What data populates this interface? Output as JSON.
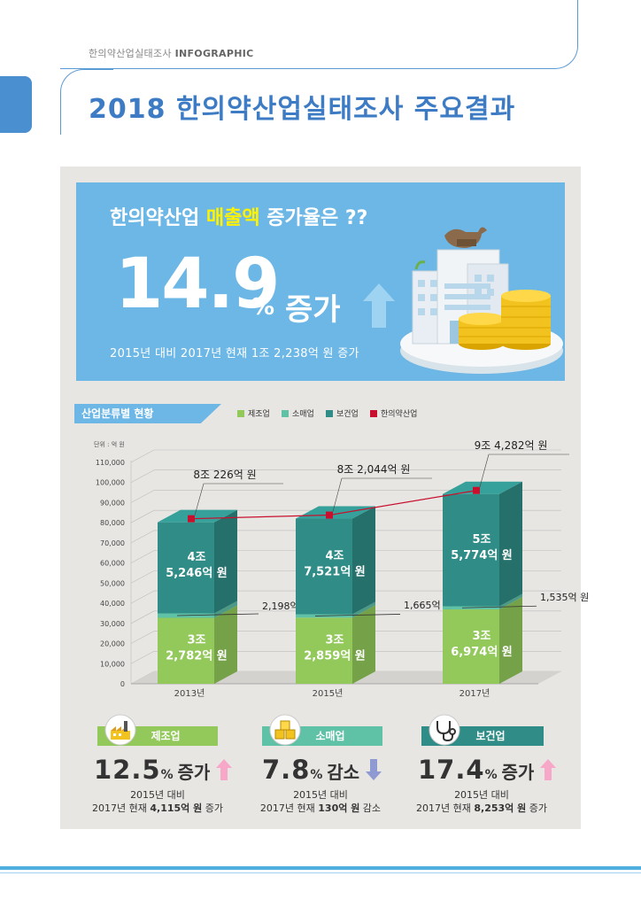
{
  "header": {
    "label_ko": "한의약산업실태조사",
    "label_en": "INFOGRAPHIC"
  },
  "title": "2018 한의약산업실태조사 주요결과",
  "hero": {
    "question_pre": "한의약산업 ",
    "question_highlight": "매출액",
    "question_post": " 증가율은 ??",
    "value": "14.9",
    "unit": "%",
    "change": "증가",
    "subtitle": "2015년 대비 2017년 현재 1조 2,238억 원 증가"
  },
  "section_title": "산업분류별 현황",
  "legend": [
    {
      "label": "제조업",
      "color": "#92c95a"
    },
    {
      "label": "소매업",
      "color": "#5fc1a6"
    },
    {
      "label": "보건업",
      "color": "#2f8c86"
    },
    {
      "label": "한의약산업",
      "color": "#c8102e"
    }
  ],
  "chart_data": {
    "type": "bar",
    "stacked": true,
    "unit_label": "단위 : 억 원",
    "categories": [
      "2013년",
      "2015년",
      "2017년"
    ],
    "ylim": [
      0,
      110000
    ],
    "yticks": [
      "110,000",
      "100,000",
      "90,000",
      "80,000",
      "70,000",
      "60,000",
      "50,000",
      "40,000",
      "30,000",
      "20,000",
      "10,000",
      "0"
    ],
    "series": [
      {
        "name": "제조업",
        "values": [
          32782,
          32859,
          36974
        ],
        "labels": [
          "3조\n2,782억 원",
          "3조\n2,859억 원",
          "3조\n6,974억 원"
        ],
        "color": "#92c95a"
      },
      {
        "name": "소매업",
        "values": [
          2198,
          1665,
          1535
        ],
        "labels": [
          "2,198억 원",
          "1,665억 원",
          "1,535억 원"
        ],
        "color": "#5fc1a6"
      },
      {
        "name": "보건업",
        "values": [
          45246,
          47521,
          55774
        ],
        "labels": [
          "4조\n5,246억 원",
          "4조\n7,521억 원",
          "5조\n5,774억 원"
        ],
        "color": "#2f8c86"
      }
    ],
    "total": {
      "name": "한의약산업",
      "values": [
        80226,
        82044,
        94282
      ],
      "labels": [
        "8조 226억 원",
        "8조 2,044억 원",
        "9조 4,282억 원"
      ],
      "color": "#c8102e"
    }
  },
  "stats": [
    {
      "label": "제조업",
      "icon": "factory-icon",
      "value": "12.5",
      "unit": "%",
      "change": "증가",
      "direction": "up",
      "base": "2015년 대비",
      "detail_pre": "2017년 현재 ",
      "detail_amount": "4,115억 원",
      "detail_post": " 증가",
      "color": "#92c95a"
    },
    {
      "label": "소매업",
      "icon": "boxes-icon",
      "value": "7.8",
      "unit": "%",
      "change": "감소",
      "direction": "down",
      "base": "2015년 대비",
      "detail_pre": "2017년 현재 ",
      "detail_amount": "130억 원",
      "detail_post": " 감소",
      "color": "#5fc1a6"
    },
    {
      "label": "보건업",
      "icon": "stethoscope-icon",
      "value": "17.4",
      "unit": "%",
      "change": "증가",
      "direction": "up",
      "base": "2015년 대비",
      "detail_pre": "2017년 현재 ",
      "detail_amount": "8,253억 원",
      "detail_post": " 증가",
      "color": "#2f8c86"
    }
  ]
}
